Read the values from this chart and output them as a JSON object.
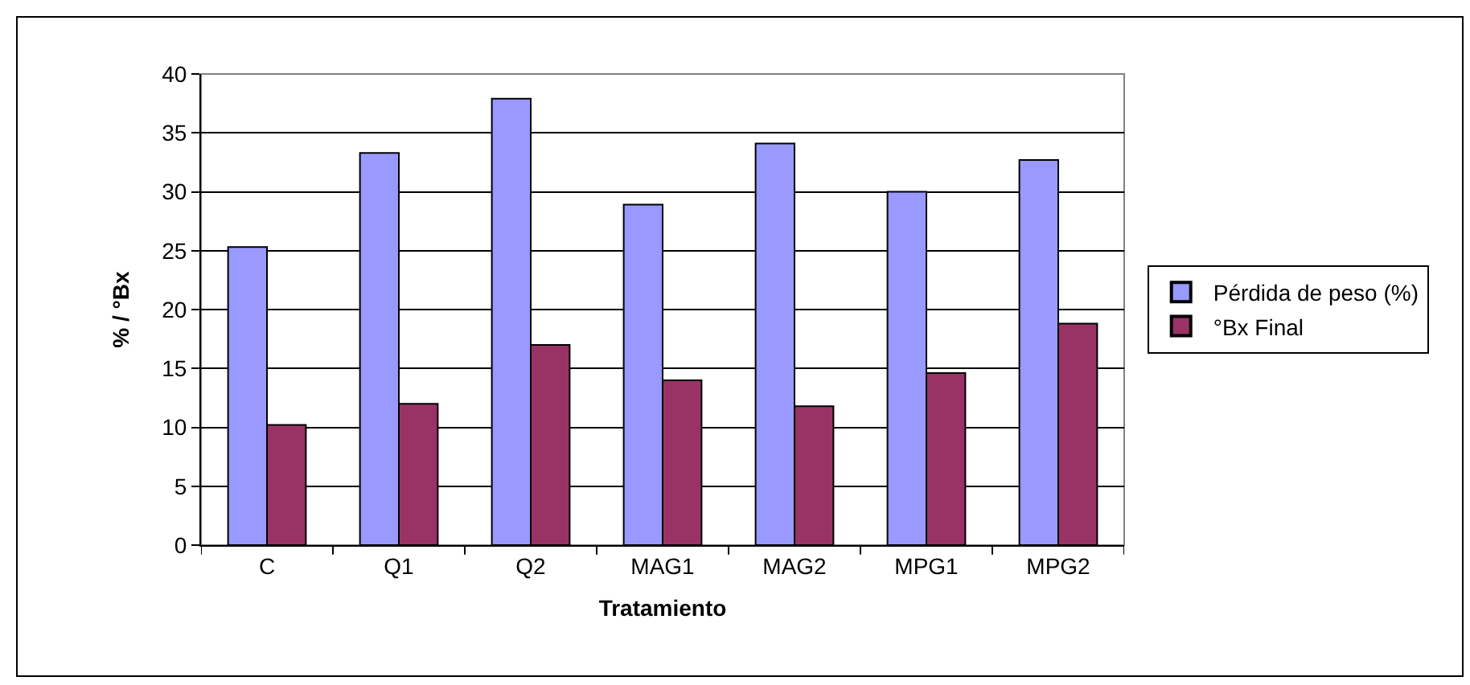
{
  "chart_data": {
    "type": "bar",
    "xlabel": "Tratamiento",
    "ylabel": "% / °Bx",
    "categories": [
      "C",
      "Q1",
      "Q2",
      "MAG1",
      "MAG2",
      "MPG1",
      "MPG2"
    ],
    "series": [
      {
        "name": "Pérdida de peso (%)",
        "color": "#9999ff",
        "values": [
          25.3,
          33.3,
          37.9,
          28.9,
          34.1,
          30.0,
          32.7
        ]
      },
      {
        "name": "°Bx Final",
        "color": "#993366",
        "values": [
          10.2,
          12.0,
          17.0,
          14.0,
          11.8,
          14.6,
          18.8
        ]
      }
    ],
    "ylim": [
      0,
      40
    ],
    "yticks": [
      0,
      5,
      10,
      15,
      20,
      25,
      30,
      35,
      40
    ],
    "grid": "y",
    "legend": "right"
  }
}
